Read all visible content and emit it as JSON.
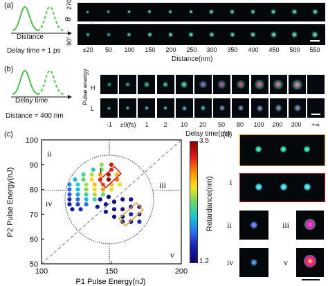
{
  "panel_a": {
    "label": "(a)",
    "schematic_xlabel": "Distance",
    "delay_text": "Delay time = 1 ps",
    "yaxis_label_top": "270°",
    "yaxis_label_mid": "θ",
    "yaxis_label_bot": "90°",
    "xticks": [
      "±20",
      "50",
      "100",
      "150",
      "200",
      "250",
      "300",
      "350",
      "400",
      "450",
      "500",
      "550"
    ],
    "xlabel": "Distance(nm)"
  },
  "panel_b": {
    "label": "(b)",
    "schematic_xlabel": "Delay time",
    "distance_text": "Distance = 400 nm",
    "ylabel": "Pulse energy",
    "row_labels": [
      "H",
      "L"
    ],
    "xticks": [
      "-1",
      "±0(fs)",
      "1",
      "2",
      "10",
      "20",
      "50",
      "80",
      "100",
      "200",
      "300",
      "+∞"
    ],
    "xlabel": "Delay time(ps)"
  },
  "panel_c": {
    "label": "(c)",
    "region_labels": [
      "i",
      "ii",
      "iii",
      "iv",
      "v"
    ],
    "colorbar_label": "Retardance(nm)",
    "colorbar_max": "3.5",
    "colorbar_min": "1.2"
  },
  "panel_d": {
    "label": "(d)",
    "labels": [
      "i",
      "ii",
      "iii",
      "iv",
      "v"
    ]
  },
  "colors": {
    "curve_green": "#4cc04c",
    "box_yellow": "#e3a623",
    "box_red": "#cc2222"
  },
  "chart_data": {
    "type": "scatter",
    "xlabel": "P1 Pulse Energy(nJ)",
    "ylabel": "P2 Pulse Energy(nJ)",
    "xlim": [
      100,
      200
    ],
    "ylim": [
      50,
      100
    ],
    "xticks": [
      "100",
      "150",
      "200"
    ],
    "yticks": [
      "50",
      "60",
      "70",
      "80",
      "90",
      "100"
    ],
    "colorbar": {
      "label": "Retardance(nm)",
      "min": 1.2,
      "max": 3.5
    },
    "points": [
      {
        "x": 143,
        "y": 90,
        "r": 2.6
      },
      {
        "x": 150,
        "y": 90,
        "r": 3.4
      },
      {
        "x": 137,
        "y": 88,
        "r": 2.3
      },
      {
        "x": 143,
        "y": 88,
        "r": 2.6
      },
      {
        "x": 150,
        "y": 88,
        "r": 3.3
      },
      {
        "x": 130,
        "y": 86,
        "r": 2.4
      },
      {
        "x": 136,
        "y": 86,
        "r": 2.7
      },
      {
        "x": 142,
        "y": 86,
        "r": 3.1
      },
      {
        "x": 148,
        "y": 86,
        "r": 3.4
      },
      {
        "x": 154,
        "y": 86,
        "r": 3.0
      },
      {
        "x": 124,
        "y": 84,
        "r": 2.2
      },
      {
        "x": 130,
        "y": 84,
        "r": 2.5
      },
      {
        "x": 136,
        "y": 84,
        "r": 2.9
      },
      {
        "x": 142,
        "y": 84,
        "r": 3.3
      },
      {
        "x": 148,
        "y": 84,
        "r": 3.5
      },
      {
        "x": 154,
        "y": 84,
        "r": 3.2
      },
      {
        "x": 120,
        "y": 82,
        "r": 2.0
      },
      {
        "x": 126,
        "y": 82,
        "r": 2.3
      },
      {
        "x": 132,
        "y": 82,
        "r": 2.7
      },
      {
        "x": 138,
        "y": 82,
        "r": 3.0
      },
      {
        "x": 144,
        "y": 82,
        "r": 3.2
      },
      {
        "x": 150,
        "y": 82,
        "r": 3.0
      },
      {
        "x": 156,
        "y": 82,
        "r": 2.8
      },
      {
        "x": 120,
        "y": 80,
        "r": 1.9
      },
      {
        "x": 126,
        "y": 80,
        "r": 2.2
      },
      {
        "x": 132,
        "y": 80,
        "r": 2.6
      },
      {
        "x": 138,
        "y": 80,
        "r": 2.9
      },
      {
        "x": 144,
        "y": 80,
        "r": 3.1
      },
      {
        "x": 150,
        "y": 80,
        "r": 2.8
      },
      {
        "x": 120,
        "y": 78,
        "r": 1.8
      },
      {
        "x": 126,
        "y": 78,
        "r": 2.1
      },
      {
        "x": 132,
        "y": 78,
        "r": 2.4
      },
      {
        "x": 138,
        "y": 78,
        "r": 2.7
      },
      {
        "x": 144,
        "y": 78,
        "r": 2.5
      },
      {
        "x": 120,
        "y": 76,
        "r": 1.6
      },
      {
        "x": 126,
        "y": 76,
        "r": 1.9
      },
      {
        "x": 132,
        "y": 76,
        "r": 2.2
      },
      {
        "x": 138,
        "y": 76,
        "r": 2.4
      },
      {
        "x": 120,
        "y": 74,
        "r": 1.5
      },
      {
        "x": 126,
        "y": 74,
        "r": 1.7
      },
      {
        "x": 132,
        "y": 74,
        "r": 1.9
      },
      {
        "x": 122,
        "y": 72,
        "r": 1.4
      },
      {
        "x": 128,
        "y": 72,
        "r": 1.6
      },
      {
        "x": 142,
        "y": 76,
        "r": 1.4
      },
      {
        "x": 148,
        "y": 77,
        "r": 1.3
      },
      {
        "x": 140,
        "y": 73,
        "r": 1.5
      },
      {
        "x": 146,
        "y": 74,
        "r": 1.4
      },
      {
        "x": 152,
        "y": 75,
        "r": 1.3
      },
      {
        "x": 158,
        "y": 76,
        "r": 1.3
      },
      {
        "x": 164,
        "y": 76,
        "r": 1.4
      },
      {
        "x": 146,
        "y": 71,
        "r": 1.4
      },
      {
        "x": 152,
        "y": 72,
        "r": 1.3
      },
      {
        "x": 158,
        "y": 72,
        "r": 1.4
      },
      {
        "x": 164,
        "y": 73,
        "r": 1.5
      },
      {
        "x": 170,
        "y": 73,
        "r": 1.4
      },
      {
        "x": 152,
        "y": 69,
        "r": 1.3
      },
      {
        "x": 158,
        "y": 69,
        "r": 1.4
      },
      {
        "x": 164,
        "y": 70,
        "r": 1.6
      },
      {
        "x": 170,
        "y": 70,
        "r": 1.5
      },
      {
        "x": 158,
        "y": 67,
        "r": 1.3
      },
      {
        "x": 164,
        "y": 67,
        "r": 1.4
      },
      {
        "x": 170,
        "y": 67,
        "r": 1.6
      }
    ]
  }
}
